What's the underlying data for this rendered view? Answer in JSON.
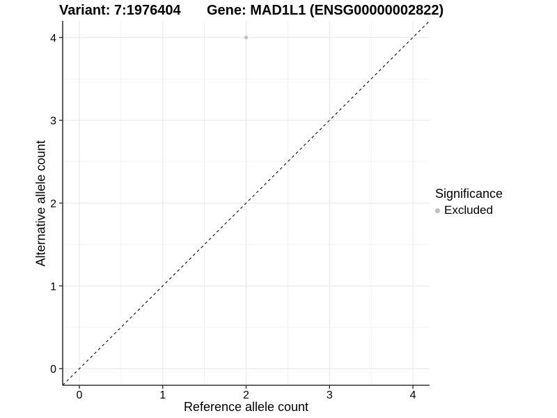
{
  "header": {
    "variant_title": "Variant: 7:1976404",
    "gene_title": "Gene: MAD1L1 (ENSG00000002822)"
  },
  "chart_data": {
    "type": "scatter",
    "title_left": "Variant: 7:1976404",
    "title_right": "Gene: MAD1L1 (ENSG00000002822)",
    "xlabel": "Reference allele count",
    "ylabel": "Alternative allele count",
    "xlim": [
      -0.2,
      4.2
    ],
    "ylim": [
      -0.2,
      4.2
    ],
    "x_ticks": [
      0,
      1,
      2,
      3,
      4
    ],
    "y_ticks": [
      0,
      1,
      2,
      3,
      4
    ],
    "minor_step": 0.5,
    "grid": true,
    "points": [
      {
        "x": 2,
        "y": 4,
        "series": "Excluded"
      }
    ],
    "abline": {
      "slope": 1,
      "intercept": 0,
      "style": "dashed"
    },
    "legend": {
      "title": "Significance",
      "position": "right",
      "items": [
        {
          "label": "Excluded",
          "color": "#bebebe"
        }
      ]
    },
    "colors": {
      "point": "#bebebe",
      "grid_major": "#e8e8e8",
      "grid_minor": "#f3f3f3",
      "axis": "#333333",
      "tick_text": "#000000",
      "abline": "#1a1a1a",
      "background": "#ffffff"
    }
  }
}
